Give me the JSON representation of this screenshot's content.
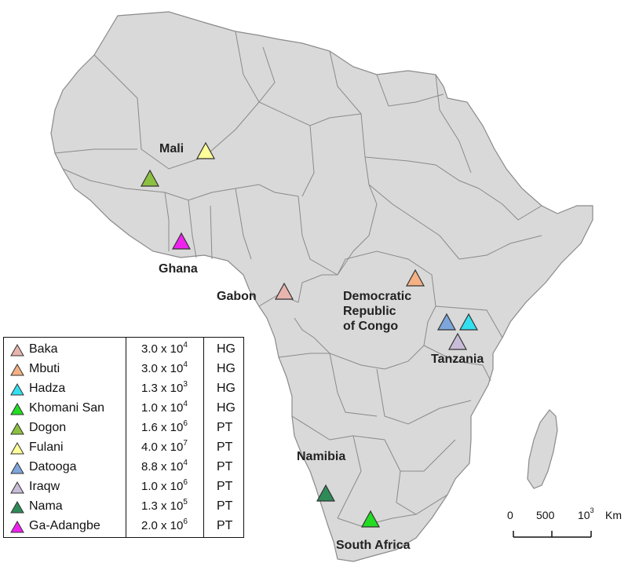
{
  "map": {
    "land_color": "#d9d9d9",
    "border_color": "#8a8a8a",
    "country_labels": [
      {
        "id": "mali",
        "lines": [
          "Mali"
        ]
      },
      {
        "id": "ghana",
        "lines": [
          "Ghana"
        ]
      },
      {
        "id": "gabon",
        "lines": [
          "Gabon"
        ]
      },
      {
        "id": "drc",
        "lines": [
          "Democratic",
          "Republic",
          "of Congo"
        ]
      },
      {
        "id": "tanzania",
        "lines": [
          "Tanzania"
        ]
      },
      {
        "id": "namibia",
        "lines": [
          "Namibia"
        ]
      },
      {
        "id": "south-africa",
        "lines": [
          "South Africa"
        ]
      }
    ]
  },
  "legend": {
    "rows": [
      {
        "name": "Baka",
        "mantissa": "3.0 x 10",
        "exp": "4",
        "class": "HG",
        "color": "#e8b4ae"
      },
      {
        "name": "Mbuti",
        "mantissa": "3.0 x 10",
        "exp": "4",
        "class": "HG",
        "color": "#f4b183"
      },
      {
        "name": "Hadza",
        "mantissa": "1.3 x 10",
        "exp": "3",
        "class": "HG",
        "color": "#33e0f0"
      },
      {
        "name": "Khomani San",
        "mantissa": "1.0 x 10",
        "exp": "4",
        "class": "HG",
        "color": "#22dd22"
      },
      {
        "name": "Dogon",
        "mantissa": "1.6 x 10",
        "exp": "6",
        "class": "PT",
        "color": "#8cc040"
      },
      {
        "name": "Fulani",
        "mantissa": "4.0 x 10",
        "exp": "7",
        "class": "PT",
        "color": "#ffff99"
      },
      {
        "name": "Datooga",
        "mantissa": "8.8 x 10",
        "exp": "4",
        "class": "PT",
        "color": "#7ea6dc"
      },
      {
        "name": "Iraqw",
        "mantissa": "1.0 x 10",
        "exp": "6",
        "class": "PT",
        "color": "#c8bcd8"
      },
      {
        "name": "Nama",
        "mantissa": "1.3 x 10",
        "exp": "5",
        "class": "PT",
        "color": "#2e8b57"
      },
      {
        "name": "Ga-Adangbe",
        "mantissa": "2.0 x 10",
        "exp": "6",
        "class": "PT",
        "color": "#ee22ee"
      }
    ]
  },
  "scale_bar": {
    "labels": [
      "0",
      "500",
      "10"
    ],
    "last_exp": "3",
    "unit": "Km"
  }
}
